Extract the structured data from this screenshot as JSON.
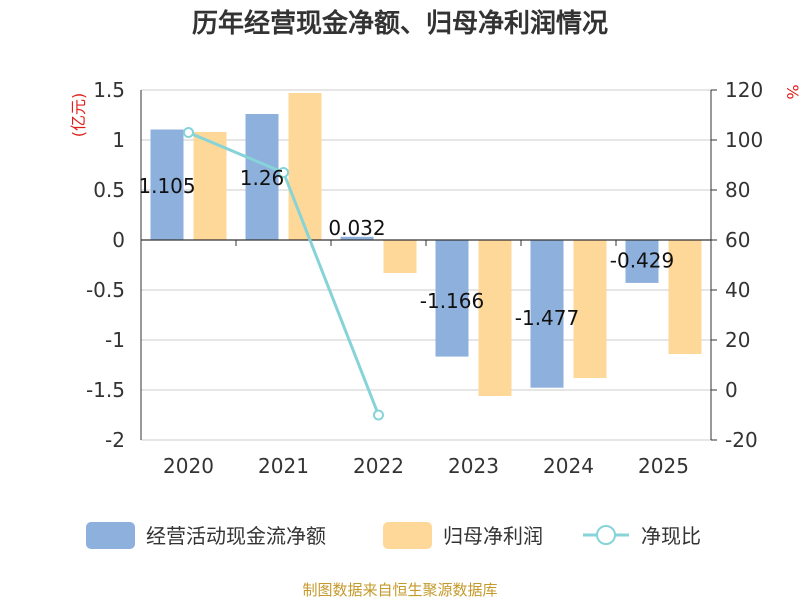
{
  "chart_data": {
    "type": "bar",
    "title": "历年经营现金净额、归母净利润情况",
    "categories": [
      "2020",
      "2021",
      "2022",
      "2023",
      "2024",
      "2025"
    ],
    "series": [
      {
        "name": "经营活动现金流净额",
        "kind": "bar",
        "axis": "left",
        "color": "#8eb0dc",
        "values": [
          1.105,
          1.26,
          0.032,
          -1.166,
          -1.477,
          -0.429
        ],
        "labels": [
          "1.105",
          "1.26",
          "0.032",
          "-1.166",
          "-1.477",
          "-0.429"
        ]
      },
      {
        "name": "归母净利润",
        "kind": "bar",
        "axis": "left",
        "color": "#fdd898",
        "values": [
          1.08,
          1.47,
          -0.33,
          -1.56,
          -1.38,
          -1.14
        ]
      },
      {
        "name": "净现比",
        "kind": "line",
        "axis": "right",
        "color": "#86d3d8",
        "values": [
          103,
          87,
          -10,
          null,
          null,
          null
        ]
      }
    ],
    "y_left": {
      "label": "(亿元)",
      "range": [
        -2,
        1.5
      ],
      "ticks": [
        "-2",
        "-1.5",
        "-1",
        "-0.5",
        "0",
        "0.5",
        "1",
        "1.5"
      ]
    },
    "y_right": {
      "label": "%",
      "range": [
        -20,
        120
      ],
      "ticks": [
        "-20",
        "0",
        "20",
        "40",
        "60",
        "80",
        "100",
        "120"
      ]
    },
    "grid": true,
    "legend": "bottom",
    "source": "制图数据来自恒生聚源数据库",
    "colors": {
      "axis_label": "#e0201c",
      "source": "#c49a2c",
      "grid": "#cccccc"
    }
  }
}
